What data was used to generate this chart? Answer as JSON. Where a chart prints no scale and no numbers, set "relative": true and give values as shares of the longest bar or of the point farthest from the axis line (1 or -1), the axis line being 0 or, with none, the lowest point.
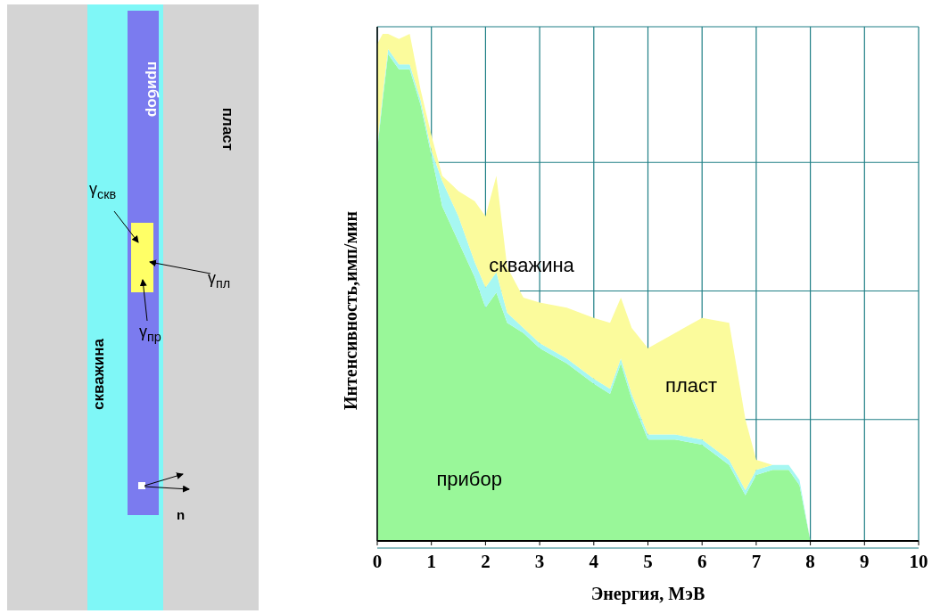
{
  "chart_data": {
    "type": "area",
    "stacked": true,
    "relative": true,
    "xlabel": "Энергия, МэВ",
    "ylabel": "Интенсивность,имп/мин",
    "xlim": [
      0,
      10
    ],
    "xticks": [
      0,
      1,
      2,
      3,
      4,
      5,
      6,
      7,
      8,
      9,
      10
    ],
    "grid": true,
    "x": [
      0,
      0.1,
      0.2,
      0.4,
      0.6,
      0.8,
      1.0,
      1.2,
      1.5,
      1.8,
      2.0,
      2.2,
      2.4,
      2.7,
      3.0,
      3.5,
      4.0,
      4.3,
      4.5,
      4.7,
      5.0,
      5.5,
      6.0,
      6.5,
      6.8,
      7.0,
      7.3,
      7.6,
      7.8,
      8.0
    ],
    "series": [
      {
        "name": "прибор",
        "color": "#99f799",
        "values": [
          0.77,
          0.87,
          0.96,
          0.93,
          0.93,
          0.86,
          0.76,
          0.66,
          0.59,
          0.52,
          0.46,
          0.49,
          0.43,
          0.41,
          0.38,
          0.35,
          0.31,
          0.29,
          0.35,
          0.28,
          0.2,
          0.2,
          0.19,
          0.15,
          0.09,
          0.13,
          0.14,
          0.14,
          0.11,
          0
        ]
      },
      {
        "name": "скважина",
        "color": "#a6f7f2",
        "values": [
          0.01,
          0.01,
          0.01,
          0.01,
          0.01,
          0.01,
          0.01,
          0.05,
          0.05,
          0.03,
          0.04,
          0.04,
          0.02,
          0.01,
          0.01,
          0.01,
          0.01,
          0.01,
          0.01,
          0.01,
          0.01,
          0.01,
          0.01,
          0.01,
          0.01,
          0.01,
          0.01,
          0.01,
          0.01,
          0
        ]
      },
      {
        "name": "пласт",
        "color": "#fbfb9c",
        "values": [
          0.2,
          0.12,
          0.03,
          0.05,
          0.06,
          0.02,
          0.03,
          0.01,
          0.05,
          0.12,
          0.14,
          0.19,
          0.09,
          0.06,
          0.08,
          0.1,
          0.12,
          0.13,
          0.12,
          0.13,
          0.17,
          0.2,
          0.24,
          0.27,
          0.14,
          0.02,
          0,
          0,
          0,
          0
        ]
      }
    ],
    "annotations": [
      "прибор",
      "пласт",
      "скважина",
      "γ$_{скв}$",
      "γ$_{пл}$",
      "γ$_{пр}$",
      "n"
    ]
  }
}
